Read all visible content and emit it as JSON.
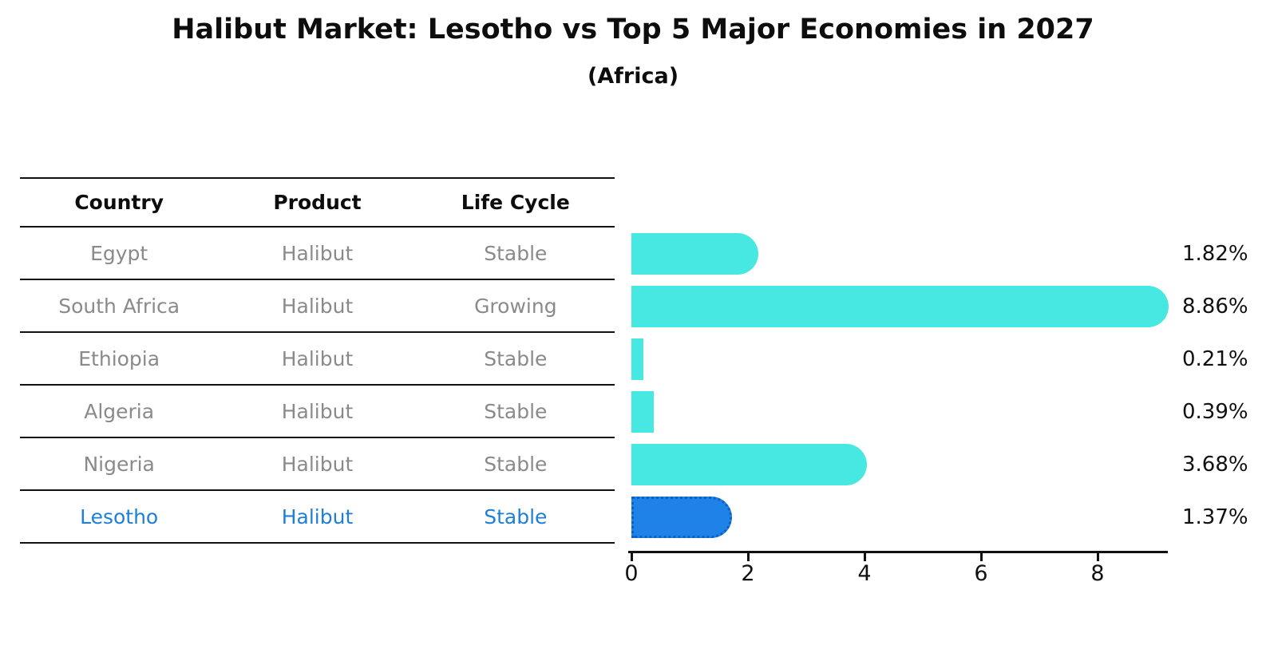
{
  "header": {
    "title": "Halibut Market: Lesotho vs Top 5 Major Economies in 2027",
    "subtitle": "(Africa)"
  },
  "table": {
    "headers": [
      "Country",
      "Product",
      "Life Cycle"
    ],
    "rows": [
      {
        "country": "Egypt",
        "product": "Halibut",
        "life_cycle": "Stable",
        "highlight": false
      },
      {
        "country": "South Africa",
        "product": "Halibut",
        "life_cycle": "Growing",
        "highlight": false
      },
      {
        "country": "Ethiopia",
        "product": "Halibut",
        "life_cycle": "Stable",
        "highlight": false
      },
      {
        "country": "Algeria",
        "product": "Halibut",
        "life_cycle": "Stable",
        "highlight": false
      },
      {
        "country": "Nigeria",
        "product": "Halibut",
        "life_cycle": "Stable",
        "highlight": false
      },
      {
        "country": "Lesotho",
        "product": "Halibut",
        "life_cycle": "Stable",
        "highlight": true
      }
    ]
  },
  "chart_data": {
    "type": "bar",
    "orientation": "horizontal",
    "title": "Halibut Market: Lesotho vs Top 5 Major Economies in 2027",
    "subtitle": "(Africa)",
    "categories": [
      "Egypt",
      "South Africa",
      "Ethiopia",
      "Algeria",
      "Nigeria",
      "Lesotho"
    ],
    "values": [
      1.82,
      8.86,
      0.21,
      0.39,
      3.68,
      1.37
    ],
    "value_labels": [
      "1.82%",
      "8.86%",
      "0.21%",
      "0.39%",
      "3.68%",
      "1.37%"
    ],
    "highlight_index": 5,
    "xticks": [
      "0",
      "2",
      "4",
      "6",
      "8"
    ],
    "xtick_values": [
      0,
      2,
      4,
      6,
      8
    ],
    "xlim": [
      0,
      9.2
    ],
    "grid": false,
    "legend": false
  },
  "colors": {
    "bar": "#47E8E1",
    "highlight_bar": "#1E82E8",
    "highlight_border": "#0E5FC0",
    "highlight_text": "#1D7FD8",
    "row_text": "#8a8a8a",
    "heading_text": "#0d0d0d",
    "axis": "#111111"
  }
}
